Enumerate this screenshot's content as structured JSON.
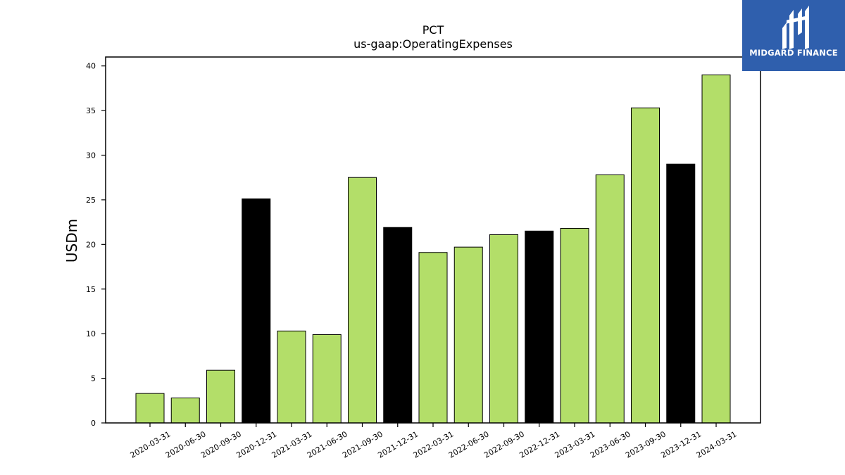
{
  "brand": {
    "name": "MIDGARD FINANCE",
    "icon": "midgard-finance-logo-icon",
    "color": "#2f5fad"
  },
  "chart_data": {
    "type": "bar",
    "title": "PCT",
    "subtitle": "us-gaap:OperatingExpenses",
    "xlabel": "",
    "ylabel": "USDm",
    "categories": [
      "2020-03-31",
      "2020-06-30",
      "2020-09-30",
      "2020-12-31",
      "2021-03-31",
      "2021-06-30",
      "2021-09-30",
      "2021-12-31",
      "2022-03-31",
      "2022-06-30",
      "2022-09-30",
      "2022-12-31",
      "2023-03-31",
      "2023-06-30",
      "2023-09-30",
      "2023-12-31",
      "2024-03-31"
    ],
    "values": [
      3.3,
      2.8,
      5.9,
      25.1,
      10.3,
      9.9,
      27.5,
      21.9,
      19.1,
      19.7,
      21.1,
      21.5,
      21.8,
      27.8,
      35.3,
      29.0,
      39.0
    ],
    "bar_colors": [
      "#b3de69",
      "#b3de69",
      "#b3de69",
      "#000000",
      "#b3de69",
      "#b3de69",
      "#b3de69",
      "#000000",
      "#b3de69",
      "#b3de69",
      "#b3de69",
      "#000000",
      "#b3de69",
      "#b3de69",
      "#b3de69",
      "#000000",
      "#b3de69"
    ],
    "ylim": [
      0,
      41
    ],
    "yticks": [
      0,
      5,
      10,
      15,
      20,
      25,
      30,
      35,
      40
    ],
    "grid": false,
    "legend": "none"
  }
}
